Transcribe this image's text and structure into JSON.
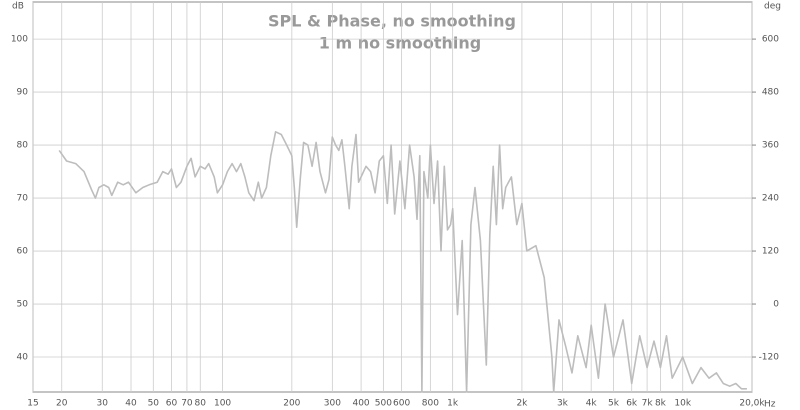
{
  "chart_data": {
    "type": "line",
    "title": "SPL & Phase, no smoothing",
    "subtitle": "1 m no smoothing",
    "ylabel": "dB",
    "y2label": "deg",
    "xlabel": "Hz",
    "xscale": "log",
    "grid": true,
    "xlim": [
      15,
      20000
    ],
    "ylim": [
      33.4,
      107
    ],
    "y2lim": [
      -199.2,
      684
    ],
    "xticks": [
      15,
      20,
      30,
      40,
      50,
      60,
      70,
      80,
      100,
      200,
      300,
      400,
      500,
      600,
      800,
      {
        "value": 1000,
        "label": "1k"
      },
      {
        "value": 2000,
        "label": "2k"
      },
      {
        "value": 3000,
        "label": "3k"
      },
      {
        "value": 4000,
        "label": "4k"
      },
      {
        "value": 5000,
        "label": "5k"
      },
      {
        "value": 6000,
        "label": "6k"
      },
      {
        "value": 7000,
        "label": "7k"
      },
      {
        "value": 8000,
        "label": "8k"
      },
      {
        "value": 10000,
        "label": "10k"
      },
      {
        "value": 20000,
        "label": "20,0k"
      }
    ],
    "yticks": [
      40,
      50,
      60,
      70,
      80,
      90,
      100
    ],
    "y2ticks": [
      -120,
      0,
      120,
      240,
      360,
      480,
      600
    ],
    "series": [
      {
        "color": "#bdbdbd",
        "x": [
          19.5,
          21,
          23,
          25,
          27,
          28,
          29,
          30.5,
          32,
          33,
          35,
          37,
          39,
          42,
          45,
          48,
          52,
          55,
          58,
          60,
          63,
          66,
          70,
          73,
          76,
          80,
          84,
          87,
          92,
          95,
          100,
          105,
          110,
          115,
          120,
          125,
          130,
          137,
          143,
          148,
          155,
          162,
          170,
          180,
          190,
          200,
          205,
          210,
          218,
          225,
          235,
          245,
          255,
          265,
          280,
          290,
          300,
          310,
          320,
          330,
          340,
          355,
          365,
          380,
          390,
          400,
          420,
          440,
          460,
          480,
          500,
          520,
          540,
          560,
          590,
          620,
          650,
          680,
          700,
          720,
          735,
          750,
          780,
          800,
          830,
          860,
          890,
          920,
          950,
          980,
          1000,
          1050,
          1100,
          1150,
          1200,
          1250,
          1320,
          1400,
          1450,
          1500,
          1550,
          1600,
          1650,
          1700,
          1800,
          1900,
          2000,
          2100,
          2300,
          2500,
          2700,
          2750,
          2900,
          3100,
          3300,
          3500,
          3800,
          4000,
          4300,
          4600,
          5000,
          5500,
          6000,
          6500,
          7000,
          7500,
          8000,
          8500,
          9000,
          10000,
          11000,
          12000,
          13000,
          14000,
          15000,
          16000,
          17000,
          18000,
          19000
        ],
        "values": [
          79,
          77,
          76.5,
          75,
          71.5,
          70,
          72,
          72.5,
          72,
          70.5,
          73,
          72.5,
          73,
          71,
          72,
          72.5,
          73,
          75,
          74.5,
          75.5,
          72,
          73,
          76,
          77.5,
          74,
          76,
          75.5,
          76.5,
          74,
          71,
          72.5,
          75,
          76.5,
          75,
          76.5,
          74,
          71,
          69.5,
          73,
          70,
          72,
          78,
          82.5,
          82,
          80,
          78,
          72,
          64.5,
          74,
          80.5,
          80,
          76,
          80.5,
          75,
          71,
          73.5,
          81.5,
          80,
          79,
          81,
          76,
          68,
          76,
          82,
          73,
          74,
          76,
          75,
          71,
          77,
          78,
          69,
          80,
          67,
          77,
          68,
          80,
          74,
          66,
          78,
          33.4,
          75,
          70,
          80,
          69,
          77,
          60,
          76,
          64,
          65,
          68,
          48,
          62,
          33.4,
          65,
          72,
          62,
          38.5,
          63,
          76,
          65,
          80,
          68,
          72,
          74,
          65,
          69,
          60,
          61,
          55,
          40,
          33.4,
          47,
          42,
          37,
          44,
          38,
          46,
          36,
          50,
          40,
          47,
          35,
          44,
          38,
          43,
          38,
          44,
          36,
          40,
          35,
          38,
          36,
          37,
          35,
          34.5,
          35,
          34,
          34
        ]
      }
    ]
  }
}
